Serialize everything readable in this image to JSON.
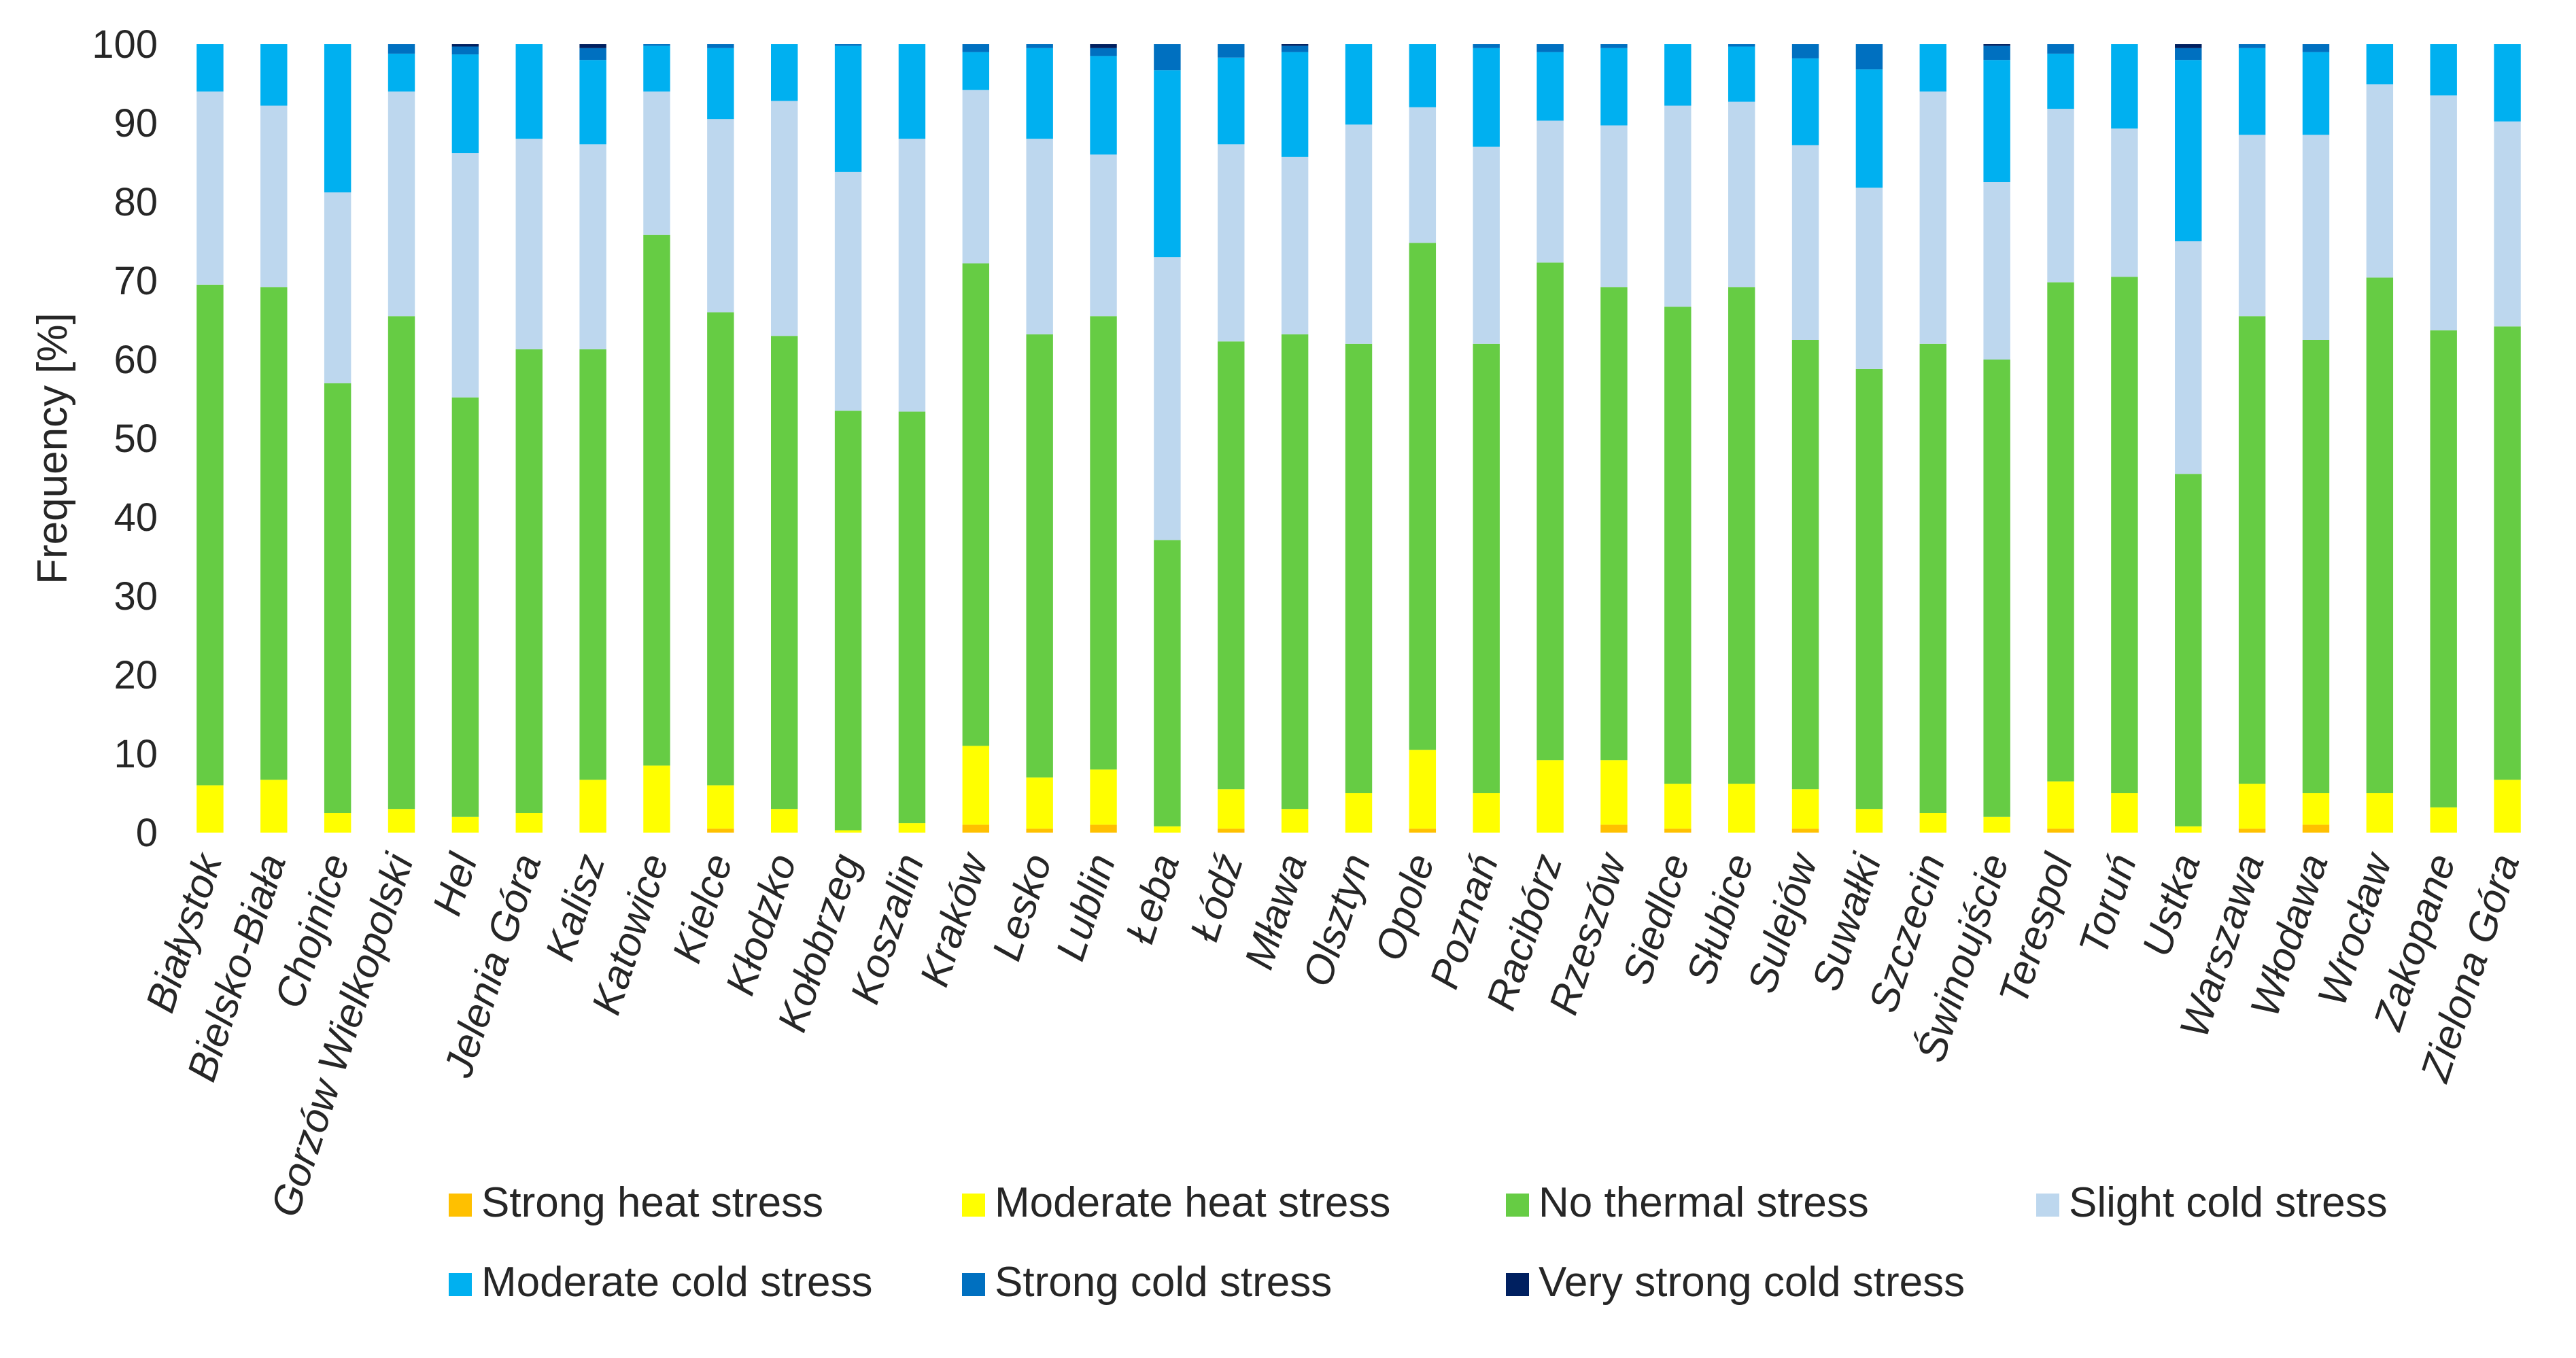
{
  "chart_data": {
    "type": "bar",
    "stacked": true,
    "title": "",
    "xlabel": "",
    "ylabel": "Frequency [%]",
    "ylim": [
      0,
      100
    ],
    "yticks": [
      0,
      10,
      20,
      30,
      40,
      50,
      60,
      70,
      80,
      90,
      100
    ],
    "grid": false,
    "legend_position": "bottom",
    "categories": [
      "Białystok",
      "Bielsko-Biała",
      "Chojnice",
      "Gorzów Wielkopolski",
      "Hel",
      "Jelenia Góra",
      "Kalisz",
      "Katowice",
      "Kielce",
      "Kłodzko",
      "Kołobrzeg",
      "Koszalin",
      "Kraków",
      "Lesko",
      "Lublin",
      "Łeba",
      "Łódź",
      "Mława",
      "Olsztyn",
      "Opole",
      "Poznań",
      "Racibórz",
      "Rzeszów",
      "Siedlce",
      "Słubice",
      "Sulejów",
      "Suwałki",
      "Szczecin",
      "Świnoujście",
      "Terespol",
      "Toruń",
      "Ustka",
      "Warszawa",
      "Włodawa",
      "Wrocław",
      "Zakopane",
      "Zielona Góra"
    ],
    "series": [
      {
        "name": "Strong heat stress",
        "color": "#FFC000",
        "values": [
          0,
          0,
          0,
          0,
          0,
          0,
          0,
          0,
          0.5,
          0,
          0,
          0,
          1,
          0.5,
          1,
          0,
          0.5,
          0,
          0,
          0.5,
          0,
          0,
          1,
          0.5,
          0,
          0.5,
          0,
          0,
          0,
          0.5,
          0,
          0,
          0.5,
          1,
          0,
          0,
          0
        ]
      },
      {
        "name": "Moderate heat stress",
        "color": "#FFFF00",
        "values": [
          6,
          6.7,
          2.5,
          3,
          2,
          2.5,
          6.7,
          8.5,
          5.5,
          3,
          0.3,
          1.2,
          10,
          6.5,
          7,
          0.8,
          5,
          3,
          5,
          10,
          5,
          9.2,
          8.2,
          5.7,
          6.2,
          5,
          3,
          2.5,
          2,
          6,
          5,
          0.8,
          5.7,
          4,
          5,
          3.2,
          6.7
        ]
      },
      {
        "name": "No thermal stress",
        "color": "#66CC44",
        "values": [
          63.5,
          62.5,
          54.5,
          62.5,
          53.2,
          58.8,
          54.6,
          67.3,
          60,
          60,
          53.2,
          52.2,
          61.2,
          56.2,
          57.5,
          36.3,
          56.8,
          60.2,
          57,
          64.3,
          57,
          63.1,
          60,
          60.5,
          63,
          57,
          55.8,
          59.5,
          58,
          63.3,
          65.5,
          44.7,
          59.3,
          57.5,
          65.4,
          60.5,
          57.5
        ]
      },
      {
        "name": "Slight cold stress",
        "color": "#BDD7EE",
        "values": [
          24.5,
          23,
          24.2,
          28.5,
          31,
          26.7,
          26,
          18.2,
          24.5,
          29.8,
          30.3,
          34.6,
          22,
          24.8,
          20.5,
          35.9,
          25,
          22.5,
          27.8,
          17.2,
          25,
          18,
          20.5,
          25.5,
          23.5,
          24.7,
          23,
          32,
          22.5,
          22,
          18.8,
          29.5,
          23,
          26,
          24.5,
          29.8,
          26
        ]
      },
      {
        "name": "Moderate cold stress",
        "color": "#00B0F0",
        "values": [
          6,
          8,
          18.8,
          4.8,
          12.5,
          12,
          10.7,
          5.8,
          9,
          7.2,
          16,
          12,
          4.8,
          11.5,
          12.5,
          23.7,
          11,
          13.3,
          10.2,
          8,
          12.5,
          8.7,
          9.8,
          7.8,
          7,
          11,
          15,
          6,
          15.5,
          7,
          10.7,
          23,
          11,
          10.5,
          5.1,
          6.5,
          9.8
        ]
      },
      {
        "name": "Strong cold stress",
        "color": "#0070C0",
        "values": [
          0,
          0,
          0,
          1.2,
          1,
          0,
          1.5,
          0.2,
          0.5,
          0,
          0.2,
          0,
          1,
          0.5,
          1,
          3.3,
          1.7,
          0.8,
          0,
          0,
          0.5,
          1,
          0.5,
          0,
          0.3,
          1.8,
          3.2,
          0,
          1.8,
          1.2,
          0,
          1.5,
          0.5,
          1,
          0,
          0,
          0
        ]
      },
      {
        "name": "Very strong cold stress",
        "color": "#002060",
        "values": [
          0,
          0,
          0,
          0,
          0.3,
          0,
          0.5,
          0,
          0,
          0,
          0,
          0,
          0,
          0,
          0.5,
          0,
          0,
          0.2,
          0,
          0,
          0,
          0,
          0,
          0,
          0,
          0,
          0,
          0,
          0.2,
          0,
          0,
          0.5,
          0,
          0,
          0,
          0,
          0
        ]
      }
    ]
  }
}
